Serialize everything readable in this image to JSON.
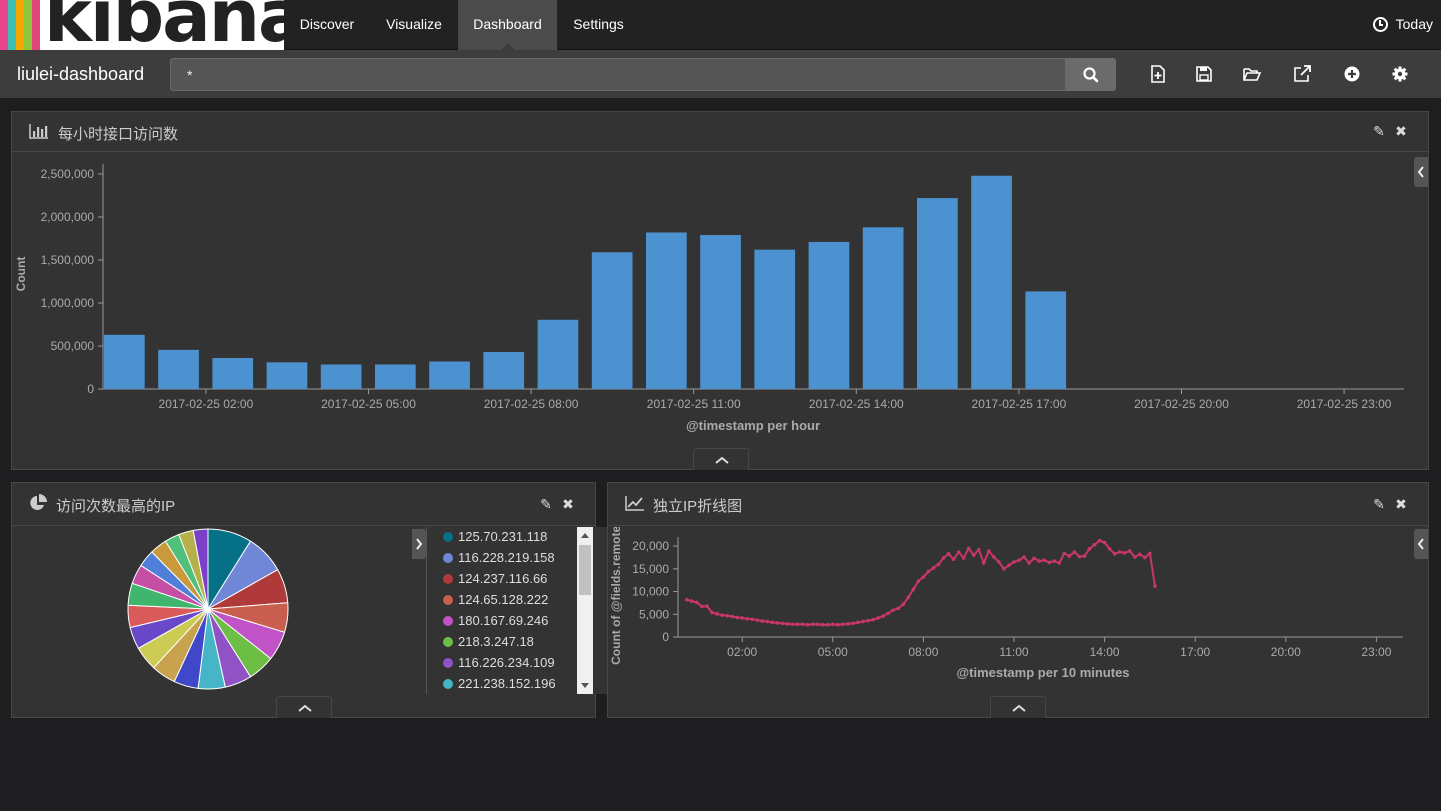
{
  "brand": {
    "name": "kibana"
  },
  "nav": {
    "tabs": [
      {
        "label": "Discover"
      },
      {
        "label": "Visualize"
      },
      {
        "label": "Dashboard",
        "active": true
      },
      {
        "label": "Settings"
      }
    ],
    "time_label": "Today"
  },
  "toolbar": {
    "dashboard_name": "liulei-dashboard",
    "query": "*",
    "icons": [
      "new-dashboard-icon",
      "save-icon",
      "open-icon",
      "share-icon",
      "add-panel-icon",
      "settings-icon"
    ]
  },
  "colors": {
    "bar": "#4d92d0",
    "line": "#c8366c",
    "accent_nav_active": "#4b4b4b"
  },
  "panels": {
    "hourly": {
      "title": "每小时接口访问数"
    },
    "top_ip": {
      "title": "访问次数最高的IP"
    },
    "unique_ip": {
      "title": "独立IP折线图"
    }
  },
  "chart_data": [
    {
      "type": "bar",
      "xlabel": "@timestamp per hour",
      "ylabel": "Count",
      "ylim": [
        0,
        2500000
      ],
      "yticks": [
        "0",
        "500,000",
        "1,000,000",
        "1,500,000",
        "2,000,000",
        "2,500,000"
      ],
      "xticks": [
        "2017-02-25 02:00",
        "2017-02-25 05:00",
        "2017-02-25 08:00",
        "2017-02-25 11:00",
        "2017-02-25 14:00",
        "2017-02-25 17:00",
        "2017-02-25 20:00",
        "2017-02-25 23:00"
      ],
      "categories": [
        "00:00",
        "01:00",
        "02:00",
        "03:00",
        "04:00",
        "05:00",
        "06:00",
        "07:00",
        "08:00",
        "09:00",
        "10:00",
        "11:00",
        "12:00",
        "13:00",
        "14:00",
        "15:00",
        "16:00",
        "17:00"
      ],
      "values": [
        630000,
        455000,
        360000,
        310000,
        285000,
        285000,
        320000,
        430000,
        805000,
        1590000,
        1820000,
        1790000,
        1620000,
        1710000,
        1880000,
        2220000,
        2480000,
        1135000
      ]
    },
    {
      "type": "pie",
      "legend": [
        "125.70.231.118",
        "116.228.219.158",
        "124.237.116.66",
        "124.65.128.222",
        "180.167.69.246",
        "218.3.247.18",
        "116.226.234.109",
        "221.238.152.196"
      ],
      "slice_colors": [
        "#057086",
        "#7087d8",
        "#b03a3a",
        "#c85e4e",
        "#c253c6",
        "#6cbf44",
        "#9152c5",
        "#45b5c7",
        "#3e48c8",
        "#c8a24d",
        "#cccc55",
        "#6a49c9",
        "#d85a5a",
        "#3fb66b",
        "#c44fa4",
        "#4f7fd8",
        "#c89a3c",
        "#4fc07a",
        "#b5b04a",
        "#7c3fc8"
      ],
      "values": [
        9,
        8,
        7,
        6,
        6,
        5.5,
        5.5,
        5.5,
        5,
        5,
        5,
        4.5,
        4.5,
        4.5,
        4,
        3.5,
        3.5,
        3,
        3,
        3
      ]
    },
    {
      "type": "line",
      "xlabel": "@timestamp per 10 minutes",
      "ylabel": "Count of @fields.remote_addr",
      "ylim": [
        0,
        22000
      ],
      "yticks": [
        "0",
        "5,000",
        "10,000",
        "15,000",
        "20,000"
      ],
      "xticks": [
        "02:00",
        "05:00",
        "08:00",
        "11:00",
        "14:00",
        "17:00",
        "20:00",
        "23:00"
      ],
      "x_start": "00:10",
      "x_step_minutes": 10,
      "values": [
        8200,
        7900,
        7600,
        6700,
        6800,
        5400,
        5100,
        4800,
        4700,
        4500,
        4300,
        4200,
        4000,
        3900,
        3700,
        3500,
        3400,
        3200,
        3100,
        3000,
        2900,
        2800,
        2800,
        2800,
        2700,
        2800,
        2800,
        2700,
        2700,
        2800,
        2700,
        2800,
        2900,
        3000,
        3200,
        3400,
        3600,
        3800,
        4200,
        4600,
        5200,
        5900,
        6300,
        7200,
        8700,
        10500,
        12300,
        13200,
        14400,
        15200,
        16000,
        17400,
        18300,
        17100,
        18700,
        17400,
        19500,
        18000,
        19200,
        16300,
        18900,
        17600,
        16500,
        15000,
        15800,
        16500,
        16900,
        17600,
        16300,
        17300,
        16700,
        16900,
        16400,
        16700,
        16300,
        18400,
        17800,
        18700,
        17700,
        17800,
        19400,
        20300,
        21200,
        20800,
        19400,
        18300,
        18700,
        18500,
        18900,
        17600,
        18200,
        17500,
        18400,
        11200
      ]
    }
  ]
}
